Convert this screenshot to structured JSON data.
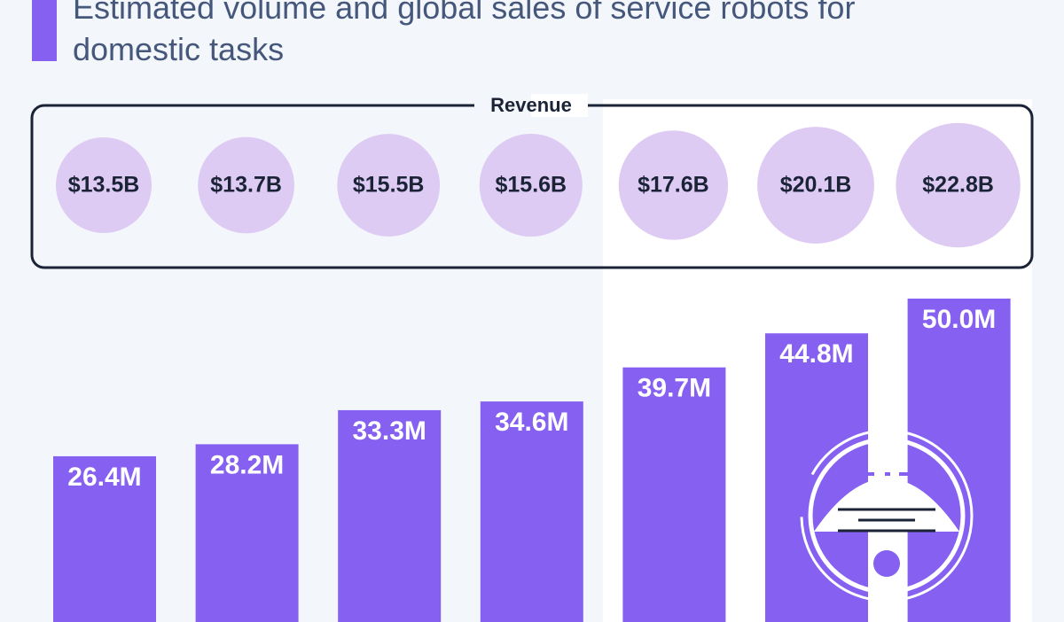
{
  "chart_data": {
    "type": "bar",
    "title": "Estimated volume and global sales of service robots for domestic tasks",
    "values": [
      26.4,
      28.2,
      33.3,
      34.6,
      39.7,
      44.8,
      50.0
    ],
    "value_labels": [
      "26.4M",
      "28.2M",
      "33.3M",
      "34.6M",
      "39.7M",
      "44.8M",
      "50.0M"
    ],
    "color": "#8660f0",
    "revenue": {
      "label": "Revenue",
      "values": [
        13.5,
        13.7,
        15.5,
        15.6,
        17.6,
        20.1,
        22.8
      ],
      "value_labels": [
        "$13.5B",
        "$13.7B",
        "$15.5B",
        "$15.6B",
        "$17.6B",
        "$20.1B",
        "$22.8B"
      ],
      "color": "#decbf4"
    }
  }
}
